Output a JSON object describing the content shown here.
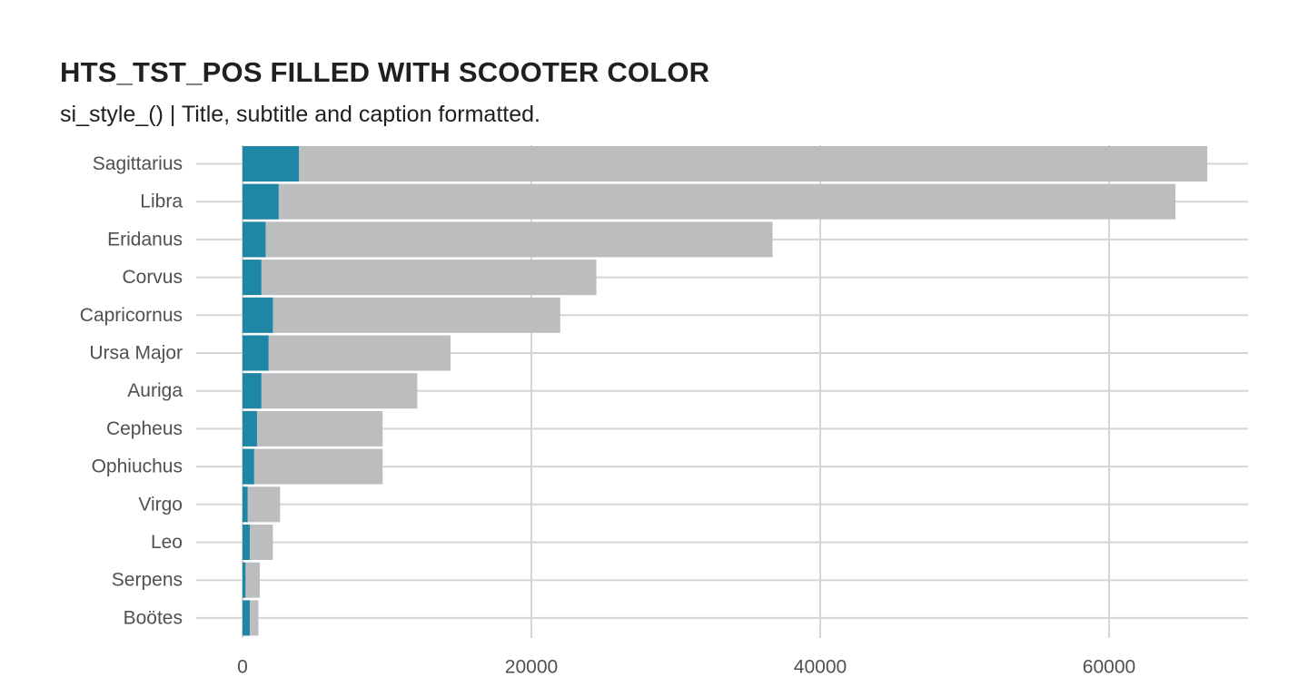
{
  "title": "HTS_TST_POS FILLED WITH SCOOTER COLOR",
  "subtitle": "si_style_() | Title, subtitle and caption formatted.",
  "colors": {
    "positive": "#1e87a5",
    "total": "#bcbdbe",
    "grid": "#d5d5d5",
    "tick_text": "#505050"
  },
  "chart_data": {
    "type": "bar",
    "orientation": "horizontal",
    "categories": [
      "Sagittarius",
      "Libra",
      "Eridanus",
      "Corvus",
      "Capricornus",
      "Ursa Major",
      "Auriga",
      "Cepheus",
      "Ophiuchus",
      "Virgo",
      "Leo",
      "Serpens",
      "Boötes"
    ],
    "series": [
      {
        "values": [
          66800,
          64600,
          36700,
          24500,
          22000,
          14400,
          12100,
          9700,
          9700,
          2600,
          2100,
          1200,
          1100
        ]
      },
      {
        "values": [
          3900,
          2500,
          1600,
          1300,
          2100,
          1800,
          1300,
          1000,
          800,
          350,
          500,
          200,
          500
        ]
      }
    ],
    "overlay": true,
    "x_ticks": [
      0,
      20000,
      40000,
      60000
    ],
    "xlim": [
      0,
      70000
    ],
    "grid": true,
    "xlabel": "",
    "ylabel": ""
  }
}
